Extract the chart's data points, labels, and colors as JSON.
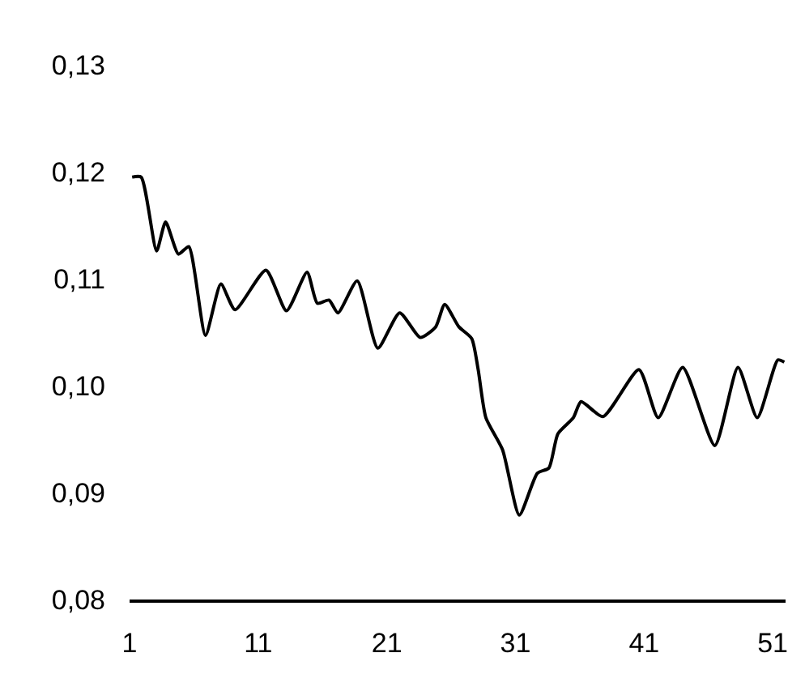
{
  "chart_data": {
    "type": "line",
    "x": [
      1.2,
      1.9,
      3.1,
      3.8,
      4.8,
      5.6,
      6.9,
      8.1,
      9.2,
      11.6,
      13.2,
      14.8,
      15.6,
      16.5,
      17.2,
      18.7,
      20.3,
      22,
      23.6,
      24.8,
      25.5,
      26.6,
      27.6,
      28.1,
      28.7,
      30,
      31.3,
      32.7,
      33.6,
      34.3,
      35.5,
      36.1,
      37.8,
      40.6,
      42.1,
      44,
      46.5,
      48.3,
      49.8,
      51.4,
      51.9
    ],
    "series": [
      {
        "color": "#000000",
        "values": [
          0.1195,
          0.1195,
          0.1126,
          0.1153,
          0.1123,
          0.113,
          0.1047,
          0.1095,
          0.1071,
          0.1108,
          0.107,
          0.1106,
          0.1077,
          0.108,
          0.1068,
          0.1098,
          0.1035,
          0.1068,
          0.1045,
          0.1055,
          0.1076,
          0.1055,
          0.1044,
          0.1015,
          0.097,
          0.094,
          0.0879,
          0.0918,
          0.0923,
          0.0955,
          0.097,
          0.0985,
          0.0971,
          0.1015,
          0.097,
          0.1017,
          0.0944,
          0.1017,
          0.097,
          0.1024,
          0.1022
        ]
      }
    ],
    "xlim": [
      1,
      52
    ],
    "xticks": [
      1,
      11,
      21,
      31,
      41,
      51
    ],
    "ylim": [
      0.08,
      0.13
    ],
    "yticks": [
      {
        "value": 0.08,
        "label": "0,08"
      },
      {
        "value": 0.09,
        "label": "0,09"
      },
      {
        "value": 0.1,
        "label": "0,10"
      },
      {
        "value": 0.11,
        "label": "0,11"
      },
      {
        "value": 0.12,
        "label": "0,12"
      },
      {
        "value": 0.13,
        "label": "0,13"
      }
    ],
    "grid": false,
    "marker": "none",
    "line_style": "solid"
  }
}
